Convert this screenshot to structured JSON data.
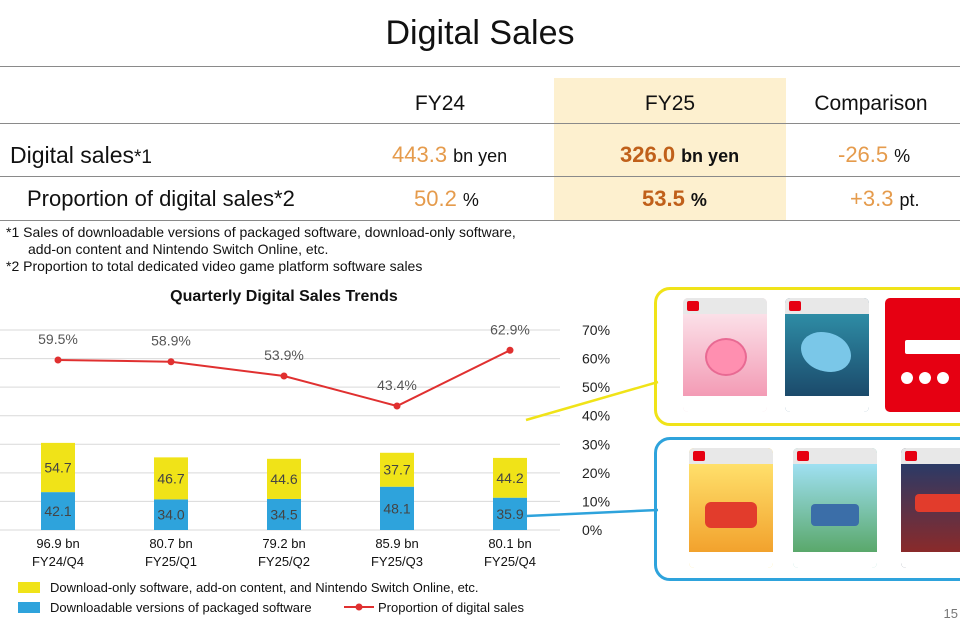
{
  "title": "Digital Sales",
  "table": {
    "headers": [
      "FY24",
      "FY25",
      "Comparison"
    ],
    "rows": [
      {
        "label": "Digital sales",
        "note": "*1",
        "fy24": "443.3",
        "fy24_unit": "bn yen",
        "fy25": "326.0",
        "fy25_unit": "bn yen",
        "comparison": "-26.5",
        "comparison_unit": "%"
      },
      {
        "label": "Proportion of digital sales",
        "note": "*2",
        "fy24": "50.2",
        "fy24_unit": "%",
        "fy25": "53.5",
        "fy25_unit": "%",
        "comparison": "+3.3",
        "comparison_unit": "pt."
      }
    ]
  },
  "notes": [
    "*1 Sales of downloadable versions of packaged software, download-only software,",
    "add-on content and Nintendo Switch Online, etc.",
    "*2 Proportion to total dedicated video game platform software sales"
  ],
  "chart_data": {
    "type": "bar",
    "title": "Quarterly Digital Sales Trends",
    "categories": [
      "FY24/Q4",
      "FY25/Q1",
      "FY25/Q2",
      "FY25/Q3",
      "FY25/Q4"
    ],
    "totals": [
      "96.9 bn",
      "80.7 bn",
      "79.2 bn",
      "85.9 bn",
      "80.1 bn"
    ],
    "series": [
      {
        "name": "Downloadable versions of packaged software",
        "values": [
          42.1,
          34.0,
          34.5,
          48.1,
          35.9
        ],
        "color": "#2ea3dc"
      },
      {
        "name": "Download-only software, add-on content, and Nintendo Switch Online, etc.",
        "values": [
          54.7,
          46.7,
          44.6,
          37.7,
          44.2
        ],
        "color": "#f0e318"
      }
    ],
    "line": {
      "name": "Proportion of digital sales",
      "values": [
        59.5,
        58.9,
        53.9,
        43.4,
        62.9
      ],
      "labels": [
        "59.5%",
        "58.9%",
        "53.9%",
        "43.4%",
        "62.9%"
      ],
      "color": "#e03030"
    },
    "y2_ticks": [
      "70%",
      "60%",
      "50%",
      "40%",
      "30%",
      "20%",
      "10%",
      "0%"
    ],
    "y2lim": [
      0,
      70
    ],
    "legend_position": "bottom",
    "legend": [
      "Download-only software, add-on content, and Nintendo Switch Online, etc.",
      "Downloadable versions of packaged software",
      "Proportion of digital sales"
    ]
  },
  "page_number": "15",
  "colors": {
    "highlight": "#fdf0cf",
    "yellow_frame": "#f0e318",
    "blue_frame": "#2ea3dc",
    "orange_value": "#e59b4c"
  }
}
